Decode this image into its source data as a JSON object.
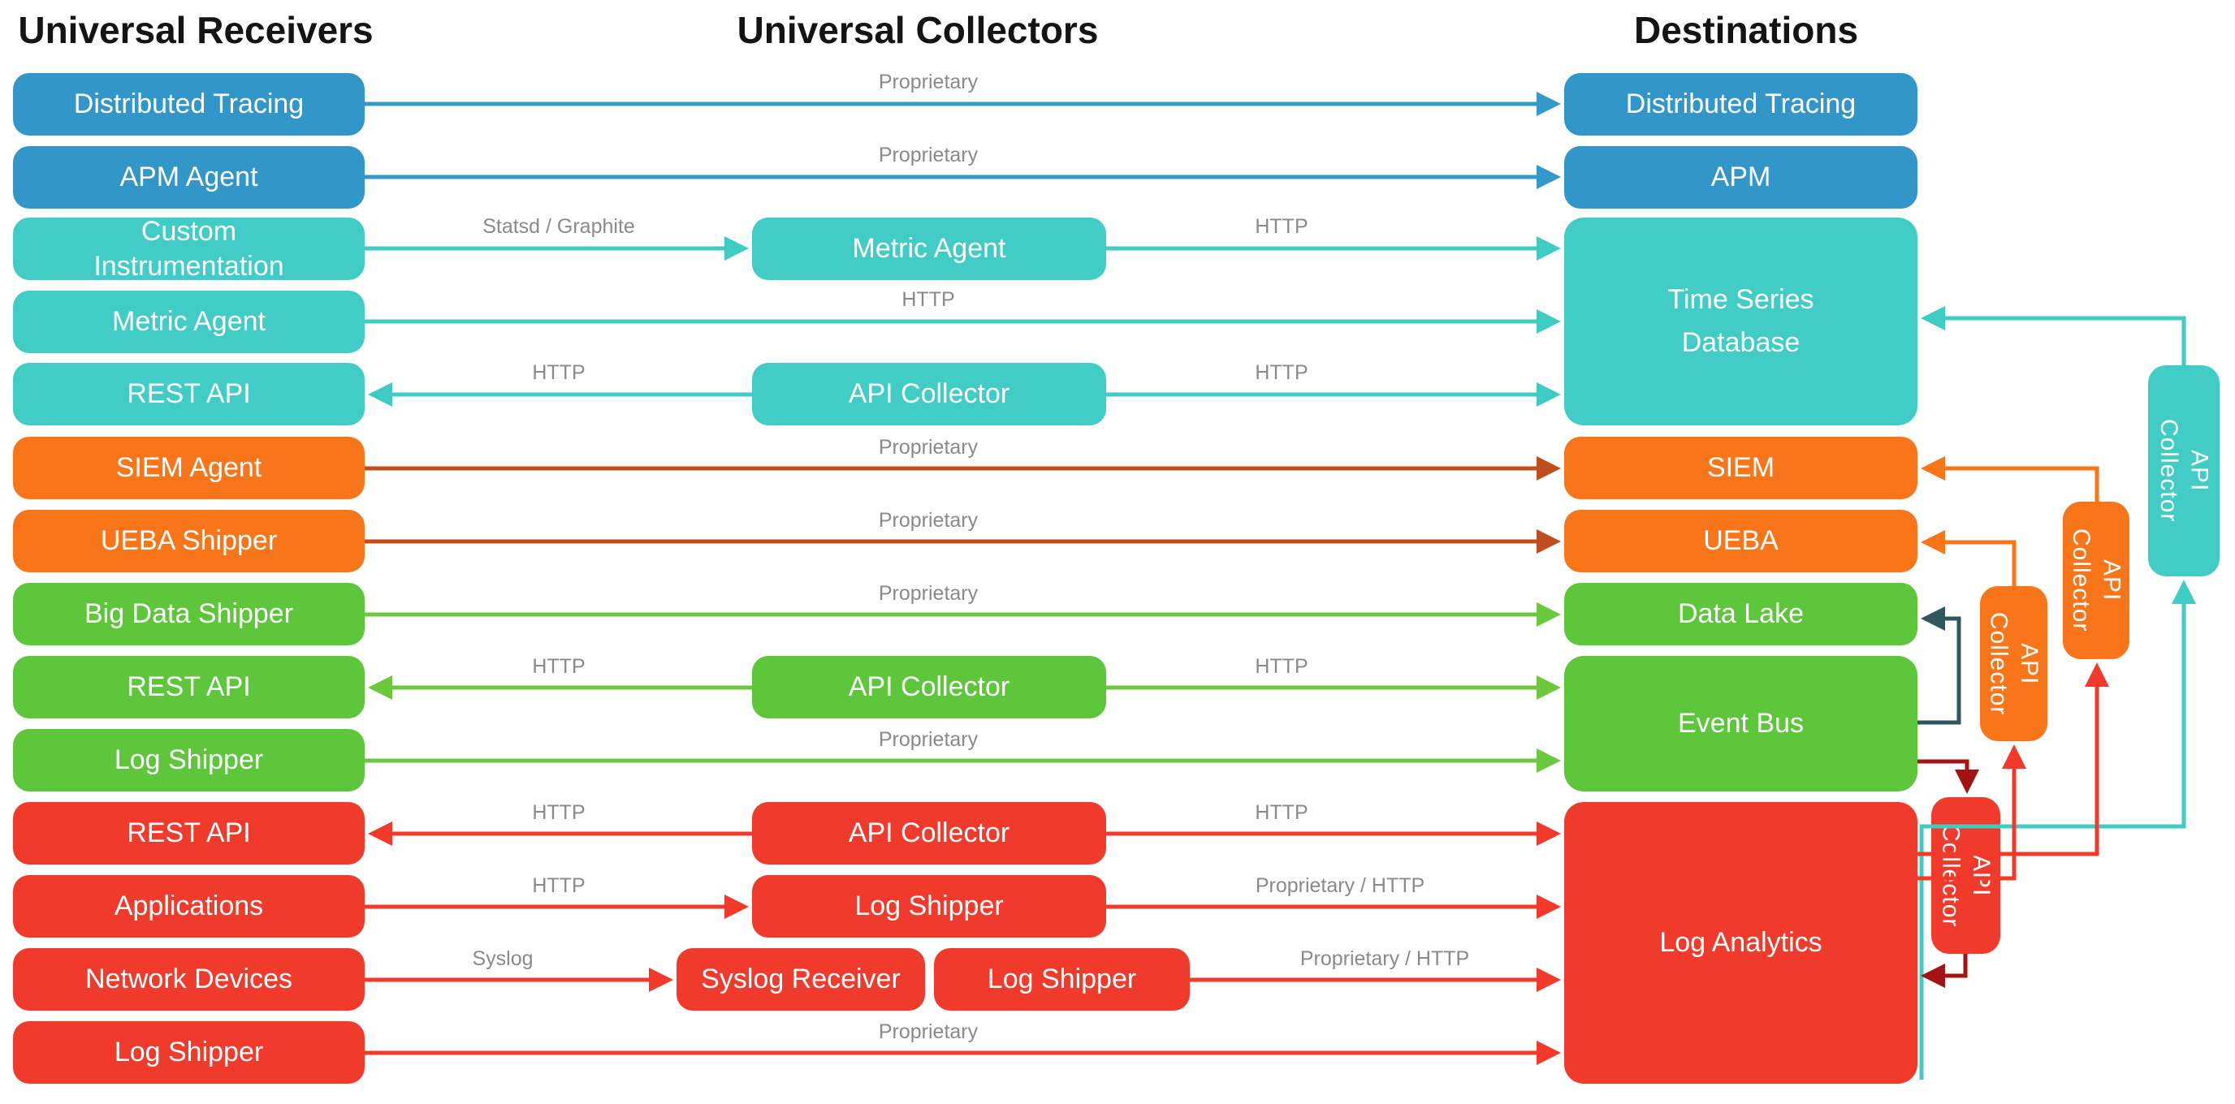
{
  "titles": {
    "receivers": "Universal Receivers",
    "collectors": "Universal Collectors",
    "destinations": "Destinations"
  },
  "palette": {
    "blue": "#3296c8",
    "teal": "#41cdc5",
    "orange": "#f9751a",
    "green": "#5dc63b",
    "red": "#f03a2b",
    "blue_line": "#3399cb",
    "teal_line": "#3fccc3",
    "green_line": "#6cc83e",
    "red_line": "#f23a2b",
    "orange_line": "#f9751a",
    "rust": "#bf4e1e",
    "maroon": "#a31313",
    "slate": "#30565e",
    "label_text": "#8a8a8a",
    "title_text": "#141414",
    "box_text": "#ffffff"
  },
  "receivers": [
    {
      "label": "Distributed Tracing",
      "color": "blue"
    },
    {
      "label": "APM Agent",
      "color": "blue"
    },
    {
      "label": "Custom\nInstrumentation",
      "color": "teal"
    },
    {
      "label": "Metric Agent",
      "color": "teal"
    },
    {
      "label": "REST API",
      "color": "teal"
    },
    {
      "label": "SIEM Agent",
      "color": "orange"
    },
    {
      "label": "UEBA Shipper",
      "color": "orange"
    },
    {
      "label": "Big Data Shipper",
      "color": "green"
    },
    {
      "label": "REST API",
      "color": "green"
    },
    {
      "label": "Log Shipper",
      "color": "green"
    },
    {
      "label": "REST API",
      "color": "red"
    },
    {
      "label": "Applications",
      "color": "red"
    },
    {
      "label": "Network Devices",
      "color": "red"
    },
    {
      "label": "Log Shipper",
      "color": "red"
    }
  ],
  "collectors": [
    {
      "label": "Metric Agent",
      "color": "teal"
    },
    {
      "label": "API Collector",
      "color": "teal"
    },
    {
      "label": "API Collector",
      "color": "green"
    },
    {
      "label": "API Collector",
      "color": "red"
    },
    {
      "label": "Log Shipper",
      "color": "red"
    },
    {
      "label": "Syslog Receiver",
      "color": "red"
    },
    {
      "label": "Log Shipper",
      "color": "red"
    }
  ],
  "destinations": [
    {
      "label": "Distributed Tracing",
      "color": "blue"
    },
    {
      "label": "APM",
      "color": "blue"
    },
    {
      "label": "Time Series\nDatabase",
      "color": "teal"
    },
    {
      "label": "SIEM",
      "color": "orange"
    },
    {
      "label": "UEBA",
      "color": "orange"
    },
    {
      "label": "Data Lake",
      "color": "green"
    },
    {
      "label": "Event Bus",
      "color": "green"
    },
    {
      "label": "Log Analytics",
      "color": "red"
    }
  ],
  "side_collectors": [
    {
      "label": "API\nCollector",
      "color": "teal"
    },
    {
      "label": "API\nCollector",
      "color": "orange"
    },
    {
      "label": "API\nCollector",
      "color": "orange"
    },
    {
      "label": "API\nCollector",
      "color": "red"
    }
  ],
  "edge_labels": [
    {
      "text": "Proprietary"
    },
    {
      "text": "Proprietary"
    },
    {
      "text": "Statsd / Graphite"
    },
    {
      "text": "HTTP"
    },
    {
      "text": "HTTP"
    },
    {
      "text": "HTTP"
    },
    {
      "text": "HTTP"
    },
    {
      "text": "Proprietary"
    },
    {
      "text": "Proprietary"
    },
    {
      "text": "Proprietary"
    },
    {
      "text": "HTTP"
    },
    {
      "text": "HTTP"
    },
    {
      "text": "Proprietary"
    },
    {
      "text": "HTTP"
    },
    {
      "text": "HTTP"
    },
    {
      "text": "HTTP"
    },
    {
      "text": "Proprietary / HTTP"
    },
    {
      "text": "Syslog"
    },
    {
      "text": "Proprietary / HTTP"
    },
    {
      "text": "Proprietary"
    }
  ]
}
